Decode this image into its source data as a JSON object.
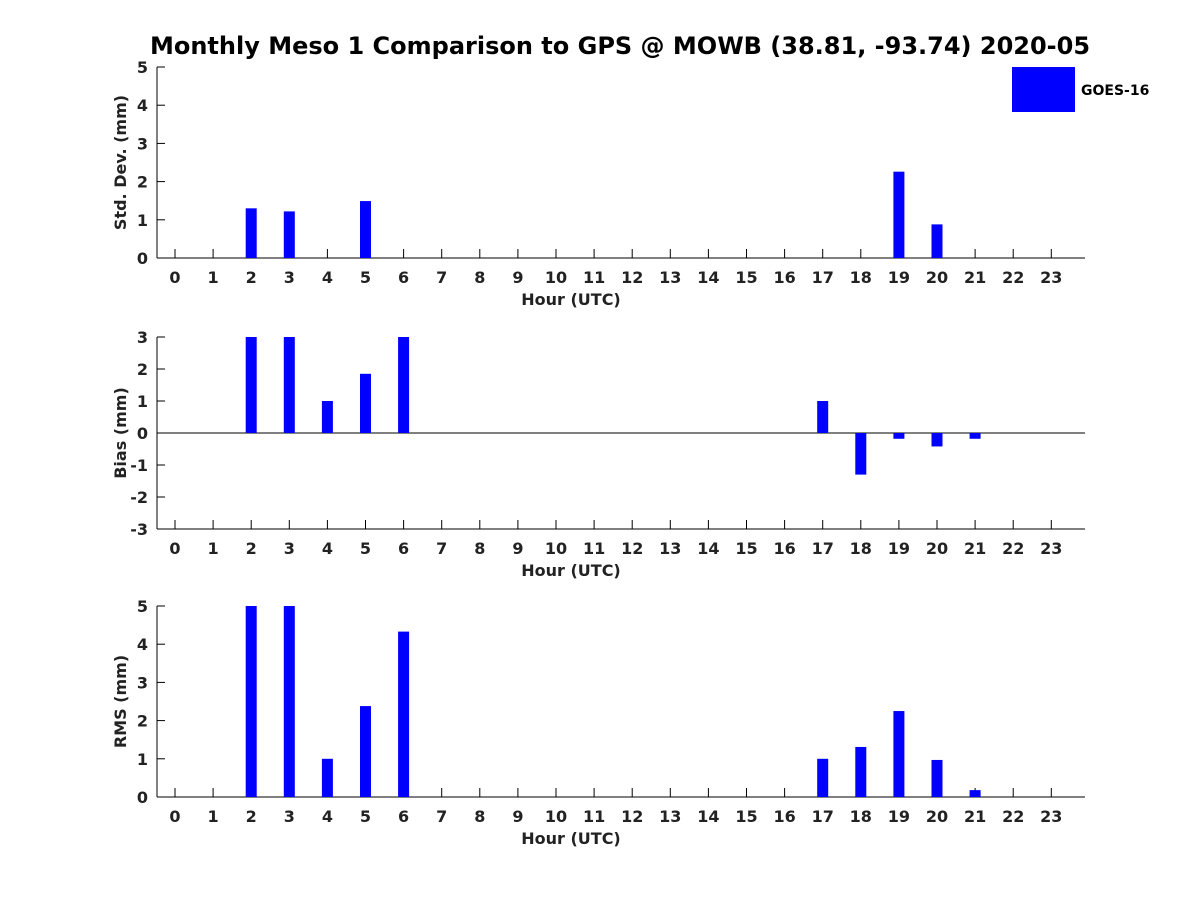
{
  "chart_data": {
    "title": "Monthly Meso 1 Comparison to GPS @ MOWB (38.81, -93.74) 2020-05",
    "legend": {
      "placement": "top-right",
      "entries": [
        {
          "name": "GOES-16",
          "color": "#0000ff"
        }
      ]
    },
    "panels": [
      {
        "type": "bar",
        "xlabel": "Hour (UTC)",
        "ylabel": "Std. Dev. (mm)",
        "x": [
          "0",
          "1",
          "2",
          "3",
          "4",
          "5",
          "6",
          "7",
          "8",
          "9",
          "10",
          "11",
          "12",
          "13",
          "14",
          "15",
          "16",
          "17",
          "18",
          "19",
          "20",
          "21",
          "22",
          "23"
        ],
        "ylim": [
          0,
          5
        ],
        "yticks": [
          "0",
          "1",
          "2",
          "3",
          "4",
          "5"
        ],
        "zero_line": false,
        "series": [
          {
            "name": "GOES-16",
            "color": "#0000ff",
            "values": [
              null,
              null,
              1.3,
              1.22,
              null,
              1.49,
              null,
              null,
              null,
              null,
              null,
              null,
              null,
              null,
              null,
              null,
              null,
              null,
              null,
              2.26,
              0.88,
              null,
              null,
              null
            ]
          }
        ]
      },
      {
        "type": "bar",
        "xlabel": "Hour (UTC)",
        "ylabel": "Bias (mm)",
        "x": [
          "0",
          "1",
          "2",
          "3",
          "4",
          "5",
          "6",
          "7",
          "8",
          "9",
          "10",
          "11",
          "12",
          "13",
          "14",
          "15",
          "16",
          "17",
          "18",
          "19",
          "20",
          "21",
          "22",
          "23"
        ],
        "ylim": [
          -3,
          3
        ],
        "yticks": [
          "-3",
          "-2",
          "-1",
          "0",
          "1",
          "2",
          "3"
        ],
        "zero_line": true,
        "series": [
          {
            "name": "GOES-16",
            "color": "#0000ff",
            "values": [
              null,
              null,
              3.0,
              3.0,
              1.0,
              1.85,
              3.0,
              null,
              null,
              null,
              null,
              null,
              null,
              null,
              null,
              null,
              null,
              1.0,
              -1.3,
              -0.18,
              -0.42,
              -0.18,
              null,
              null
            ]
          }
        ]
      },
      {
        "type": "bar",
        "xlabel": "Hour (UTC)",
        "ylabel": "RMS (mm)",
        "x": [
          "0",
          "1",
          "2",
          "3",
          "4",
          "5",
          "6",
          "7",
          "8",
          "9",
          "10",
          "11",
          "12",
          "13",
          "14",
          "15",
          "16",
          "17",
          "18",
          "19",
          "20",
          "21",
          "22",
          "23"
        ],
        "ylim": [
          0,
          5
        ],
        "yticks": [
          "0",
          "1",
          "2",
          "3",
          "4",
          "5"
        ],
        "zero_line": false,
        "series": [
          {
            "name": "GOES-16",
            "color": "#0000ff",
            "values": [
              null,
              null,
              5.0,
              5.0,
              1.0,
              2.38,
              4.33,
              null,
              null,
              null,
              null,
              null,
              null,
              null,
              null,
              null,
              null,
              1.0,
              1.31,
              2.25,
              0.97,
              0.18,
              null,
              null
            ]
          }
        ]
      }
    ]
  }
}
